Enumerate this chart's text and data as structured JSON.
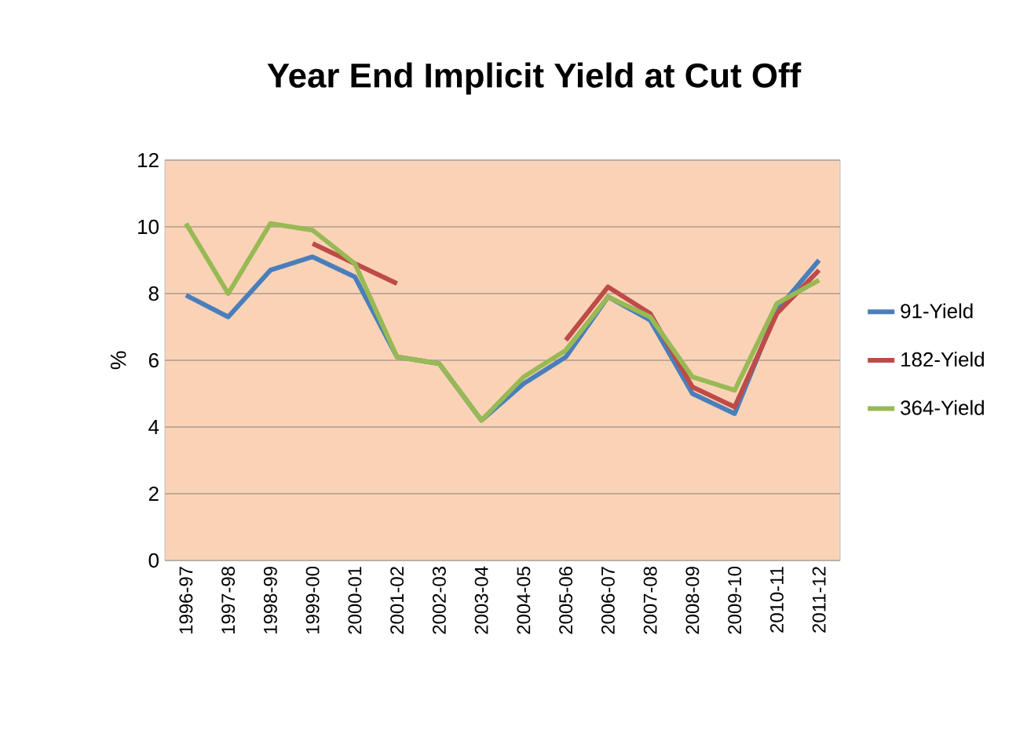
{
  "chart_data": {
    "type": "line",
    "title": "Year End Implicit Yield at Cut Off",
    "ylabel": "%",
    "categories": [
      "1996-97",
      "1997-98",
      "1998-99",
      "1999-00",
      "2000-01",
      "2001-02",
      "2002-03",
      "2003-04",
      "2004-05",
      "2005-06",
      "2006-07",
      "2007-08",
      "2008-09",
      "2009-10",
      "2010-11",
      "2011-12"
    ],
    "series": [
      {
        "name": "91-Yield",
        "color": "#4a7ebb",
        "values": [
          7.95,
          7.3,
          8.7,
          9.1,
          8.5,
          6.1,
          5.9,
          4.2,
          5.3,
          6.1,
          7.9,
          7.2,
          5.0,
          4.4,
          7.5,
          9.0
        ]
      },
      {
        "name": "182-Yield",
        "color": "#be4b48",
        "values": [
          null,
          null,
          null,
          9.5,
          8.9,
          8.3,
          null,
          null,
          null,
          6.6,
          8.2,
          7.4,
          5.2,
          4.6,
          7.4,
          8.7
        ]
      },
      {
        "name": "364-Yield",
        "color": "#98b954",
        "values": [
          10.1,
          8.0,
          10.1,
          9.9,
          8.9,
          6.1,
          5.9,
          4.2,
          5.5,
          6.3,
          7.9,
          7.3,
          5.5,
          5.1,
          7.7,
          8.4
        ]
      }
    ],
    "ylim": [
      0,
      12
    ],
    "yticks": [
      0,
      2,
      4,
      6,
      8,
      10,
      12
    ],
    "grid": "y",
    "legend": "right",
    "marker": "none",
    "line_style": "solid"
  }
}
